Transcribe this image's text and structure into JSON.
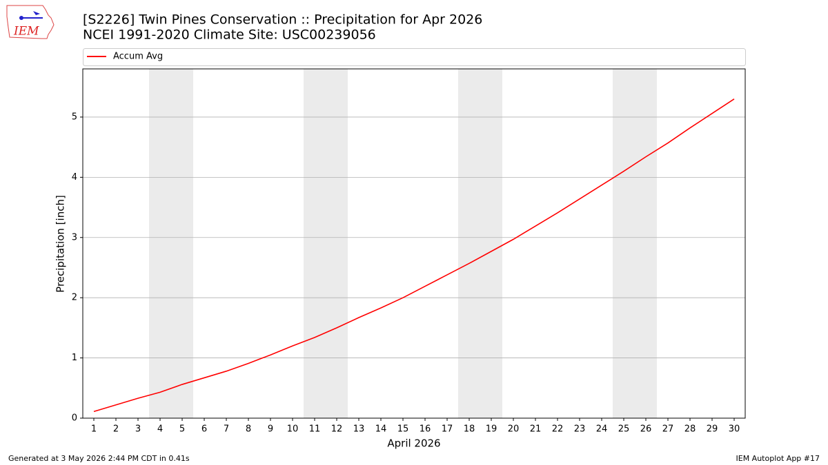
{
  "logo_text": "IEM",
  "footer_left": "Generated at 3 May 2026 2:44 PM CDT in 0.41s",
  "footer_right": "IEM Autoplot App #17",
  "chart_data": {
    "type": "line",
    "title": "[S2226] Twin Pines Conservation :: Precipitation for Apr 2026",
    "subtitle": "NCEI 1991-2020 Climate Site: USC00239056",
    "x_label": "April 2026",
    "y_label": "Precipitation [inch]",
    "x": [
      1,
      2,
      3,
      4,
      5,
      6,
      7,
      8,
      9,
      10,
      11,
      12,
      13,
      14,
      15,
      16,
      17,
      18,
      19,
      20,
      21,
      22,
      23,
      24,
      25,
      26,
      27,
      28,
      29,
      30
    ],
    "series": [
      {
        "name": "Accum Avg",
        "color": "#ff0000",
        "values": [
          0.11,
          0.22,
          0.33,
          0.43,
          0.56,
          0.67,
          0.78,
          0.91,
          1.05,
          1.2,
          1.34,
          1.5,
          1.67,
          1.83,
          2.0,
          2.19,
          2.38,
          2.57,
          2.77,
          2.97,
          3.19,
          3.41,
          3.64,
          3.87,
          4.1,
          4.34,
          4.57,
          4.82,
          5.06,
          5.3
        ]
      }
    ],
    "xlim": [
      0.5,
      30.5
    ],
    "xticks": [
      1,
      2,
      3,
      4,
      5,
      6,
      7,
      8,
      9,
      10,
      11,
      12,
      13,
      14,
      15,
      16,
      17,
      18,
      19,
      20,
      21,
      22,
      23,
      24,
      25,
      26,
      27,
      28,
      29,
      30
    ],
    "ylim": [
      0,
      5.8
    ],
    "yticks": [
      0,
      1,
      2,
      3,
      4,
      5
    ],
    "grid": true,
    "shaded_spans": [
      [
        3.5,
        5.5
      ],
      [
        10.5,
        12.5
      ],
      [
        17.5,
        19.5
      ],
      [
        24.5,
        26.5
      ]
    ],
    "shade_color": "#ebebeb",
    "legend_position": "top"
  }
}
